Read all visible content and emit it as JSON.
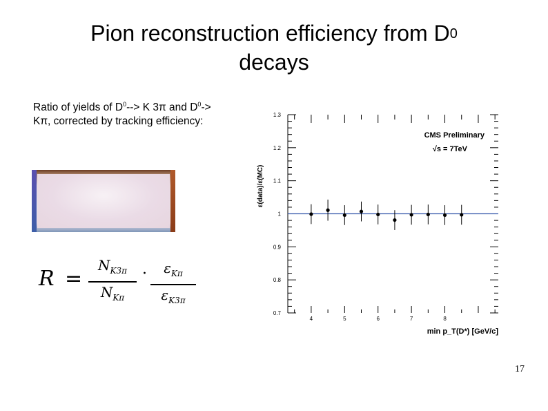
{
  "slide": {
    "title_line1": "Pion reconstruction efficiency from D",
    "title_sup": "0",
    "title_line2": "decays",
    "description": {
      "part1": "Ratio of yields of D",
      "sup1": "0",
      "part2": "--> K 3π and D",
      "sup2": "0",
      "part3": "-> Kπ, corrected by tracking efficiency:"
    },
    "formula": {
      "lhs": "R",
      "eq": "=",
      "num1": "N",
      "num1_sub": "K3π",
      "den1": "N",
      "den1_sub": "Kπ",
      "dot": "·",
      "num2": "ε",
      "num2_sub": "Kπ",
      "den2": "ε",
      "den2_sub": "K3π"
    },
    "page_number": "17"
  },
  "chart_data": {
    "type": "scatter",
    "ylabel": "ε(data)/ε(MC)",
    "xlabel": "min p_T(D*) [GeV/c]",
    "annotation_line1": "CMS Preliminary",
    "annotation_line2": "√s = 7TeV",
    "xlim": [
      3.3,
      9.6
    ],
    "ylim": [
      0.7,
      1.3
    ],
    "x_ticks": [
      4,
      5,
      6,
      7,
      8
    ],
    "x_tick_labels": [
      "4",
      "5",
      "6",
      "7",
      "8"
    ],
    "y_ticks": [
      0.7,
      0.8,
      0.9,
      1.0,
      1.1,
      1.2,
      1.3
    ],
    "y_tick_labels": [
      "0.7",
      "0.8",
      "0.9",
      "1",
      "1.1",
      "1.2",
      "1.3"
    ],
    "reference_line": 1.0,
    "reference_color": "#3355aa",
    "points": [
      {
        "x": 4.0,
        "y": 0.999,
        "err": 0.03
      },
      {
        "x": 4.5,
        "y": 1.011,
        "err": 0.032
      },
      {
        "x": 5.0,
        "y": 0.996,
        "err": 0.03
      },
      {
        "x": 5.5,
        "y": 1.007,
        "err": 0.03
      },
      {
        "x": 6.0,
        "y": 0.998,
        "err": 0.03
      },
      {
        "x": 6.5,
        "y": 0.981,
        "err": 0.03
      },
      {
        "x": 7.0,
        "y": 0.997,
        "err": 0.03
      },
      {
        "x": 7.5,
        "y": 0.998,
        "err": 0.03
      },
      {
        "x": 8.0,
        "y": 0.996,
        "err": 0.03
      },
      {
        "x": 8.5,
        "y": 0.997,
        "err": 0.03
      }
    ]
  }
}
